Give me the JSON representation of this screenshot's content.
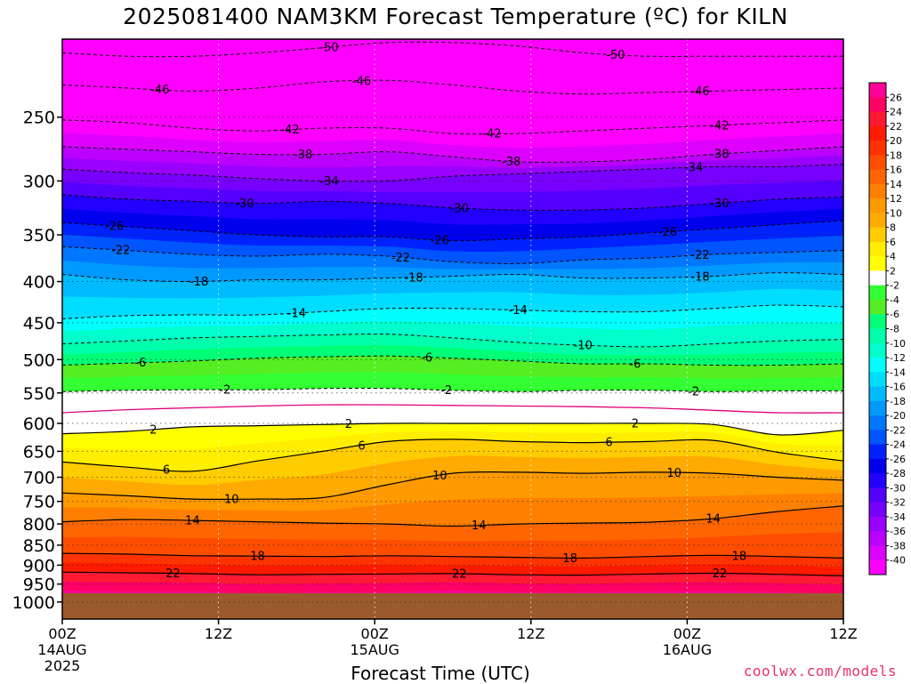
{
  "chart_data": {
    "type": "heatmap",
    "title": "2025081400 NAM3KM Forecast Temperature (ºC) for KILN",
    "xlabel": "Forecast Time (UTC)",
    "ylabel": "",
    "credit": "coolwx.com/models",
    "x_range_hours": [
      0,
      60
    ],
    "y_scale": "log",
    "y_range_hpa": [
      1050,
      200
    ],
    "y_ticks": [
      250,
      300,
      350,
      400,
      450,
      500,
      550,
      600,
      650,
      700,
      750,
      800,
      850,
      900,
      950,
      1000
    ],
    "x_ticks": [
      {
        "hour": 0,
        "lines": [
          "00Z",
          "14AUG",
          "2025"
        ]
      },
      {
        "hour": 12,
        "lines": [
          "12Z"
        ]
      },
      {
        "hour": 24,
        "lines": [
          "00Z",
          "15AUG"
        ]
      },
      {
        "hour": 36,
        "lines": [
          "12Z"
        ]
      },
      {
        "hour": 48,
        "lines": [
          "00Z",
          "16AUG"
        ]
      },
      {
        "hour": 60,
        "lines": [
          "12Z"
        ]
      }
    ],
    "ground_pressure_hpa": 975,
    "grid": true,
    "colorbar": {
      "placement": "right",
      "levels": [
        26,
        24,
        22,
        20,
        18,
        16,
        14,
        12,
        10,
        8,
        6,
        4,
        2,
        -2,
        -4,
        -6,
        -8,
        -10,
        -12,
        -14,
        -16,
        -18,
        -20,
        -22,
        -24,
        -26,
        -28,
        -30,
        -32,
        -34,
        -36,
        -38,
        -40
      ],
      "colors": [
        "#ff0099",
        "#ff0066",
        "#ff1a33",
        "#ff1a00",
        "#ff3300",
        "#ff4d00",
        "#ff6600",
        "#ff8000",
        "#ff9900",
        "#ffaa00",
        "#ffcc00",
        "#ffee00",
        "#ffff00",
        "#ffffff",
        "#33ff33",
        "#55ee22",
        "#00ff77",
        "#00ffaa",
        "#00ffcc",
        "#00ffff",
        "#00ddff",
        "#00bbff",
        "#0099ff",
        "#0077ff",
        "#0055ff",
        "#0022ff",
        "#0000ee",
        "#2200ff",
        "#5500ff",
        "#7700ff",
        "#9900ff",
        "#bb00ff",
        "#dd00ff",
        "#ff00ff"
      ]
    },
    "series": [
      {
        "temp": 22,
        "pressure_hpa": [
          918,
          920,
          922,
          925,
          924,
          923,
          922,
          925,
          926,
          923,
          921,
          924,
          928
        ],
        "label_hours": [
          8.5,
          30.5,
          50.5
        ]
      },
      {
        "temp": 18,
        "pressure_hpa": [
          870,
          872,
          876,
          877,
          878,
          876,
          878,
          880,
          882,
          878,
          875,
          878,
          882
        ],
        "label_hours": [
          15,
          39,
          52
        ]
      },
      {
        "temp": 14,
        "pressure_hpa": [
          795,
          790,
          792,
          795,
          798,
          800,
          805,
          800,
          798,
          796,
          788,
          772,
          760
        ],
        "label_hours": [
          10,
          32,
          50
        ]
      },
      {
        "temp": 10,
        "pressure_hpa": [
          732,
          738,
          745,
          745,
          742,
          715,
          692,
          690,
          692,
          690,
          692,
          700,
          706
        ],
        "label_hours": [
          13,
          29,
          47
        ]
      },
      {
        "temp": 6,
        "pressure_hpa": [
          670,
          680,
          688,
          668,
          650,
          632,
          628,
          632,
          634,
          632,
          630,
          652,
          668
        ],
        "label_hours": [
          8,
          23,
          42
        ]
      },
      {
        "temp": 2,
        "pressure_hpa": [
          618,
          614,
          606,
          604,
          602,
          600,
          600,
          600,
          600,
          600,
          602,
          620,
          612
        ],
        "label_hours": [
          7,
          22,
          44
        ]
      },
      {
        "temp": 0,
        "pressure_hpa": [
          582,
          577,
          574,
          571,
          569,
          569,
          570,
          571,
          572,
          574,
          578,
          582,
          582
        ],
        "label_hours": []
      },
      {
        "temp": -2,
        "pressure_hpa": [
          548,
          546,
          545,
          545,
          543,
          543,
          546,
          548,
          546,
          546,
          548,
          547,
          547
        ],
        "label_hours": [
          12.5,
          29.5,
          48.5
        ]
      },
      {
        "temp": -6,
        "pressure_hpa": [
          508,
          505,
          502,
          498,
          496,
          495,
          498,
          502,
          506,
          506,
          508,
          508,
          506
        ],
        "label_hours": [
          6,
          28,
          44
        ]
      },
      {
        "temp": -10,
        "pressure_hpa": [
          478,
          474,
          470,
          468,
          466,
          465,
          470,
          476,
          480,
          482,
          478,
          474,
          472
        ],
        "label_hours": [
          40
        ]
      },
      {
        "temp": -14,
        "pressure_hpa": [
          445,
          441,
          440,
          440,
          436,
          432,
          432,
          434,
          436,
          436,
          432,
          428,
          430
        ],
        "label_hours": [
          18,
          35
        ]
      },
      {
        "temp": -18,
        "pressure_hpa": [
          392,
          398,
          400,
          398,
          398,
          396,
          394,
          392,
          396,
          396,
          394,
          390,
          392
        ],
        "label_hours": [
          10.5,
          27,
          49
        ]
      },
      {
        "temp": -22,
        "pressure_hpa": [
          362,
          366,
          370,
          372,
          370,
          372,
          378,
          380,
          376,
          374,
          370,
          368,
          366
        ],
        "label_hours": [
          4.5,
          26,
          49
        ]
      },
      {
        "temp": -26,
        "pressure_hpa": [
          338,
          342,
          346,
          350,
          352,
          352,
          356,
          354,
          352,
          348,
          344,
          340,
          336
        ],
        "label_hours": [
          4,
          29,
          46.5
        ]
      },
      {
        "temp": -30,
        "pressure_hpa": [
          312,
          316,
          318,
          320,
          318,
          320,
          324,
          326,
          326,
          324,
          320,
          316,
          314
        ],
        "label_hours": [
          14,
          30.5,
          50.5
        ]
      },
      {
        "temp": -34,
        "pressure_hpa": [
          290,
          293,
          295,
          298,
          300,
          300,
          296,
          294,
          292,
          290,
          288,
          288,
          286
        ],
        "label_hours": [
          20.5,
          48.5
        ]
      },
      {
        "temp": -38,
        "pressure_hpa": [
          272,
          274,
          276,
          278,
          278,
          276,
          280,
          284,
          284,
          282,
          278,
          275,
          272
        ],
        "label_hours": [
          18.5,
          34.5,
          50.5
        ]
      },
      {
        "temp": -42,
        "pressure_hpa": [
          252,
          254,
          258,
          260,
          258,
          258,
          262,
          262,
          260,
          258,
          256,
          254,
          252
        ],
        "label_hours": [
          17.5,
          33,
          50.5
        ]
      },
      {
        "temp": -46,
        "pressure_hpa": [
          228,
          230,
          232,
          230,
          226,
          225,
          228,
          232,
          234,
          233,
          232,
          231,
          230
        ],
        "label_hours": [
          7.5,
          23,
          49
        ]
      },
      {
        "temp": -50,
        "pressure_hpa": [
          208,
          210,
          210,
          208,
          205,
          202,
          202,
          204,
          208,
          210,
          210,
          210,
          210
        ],
        "label_hours": [
          20.5,
          42.5
        ]
      }
    ]
  }
}
